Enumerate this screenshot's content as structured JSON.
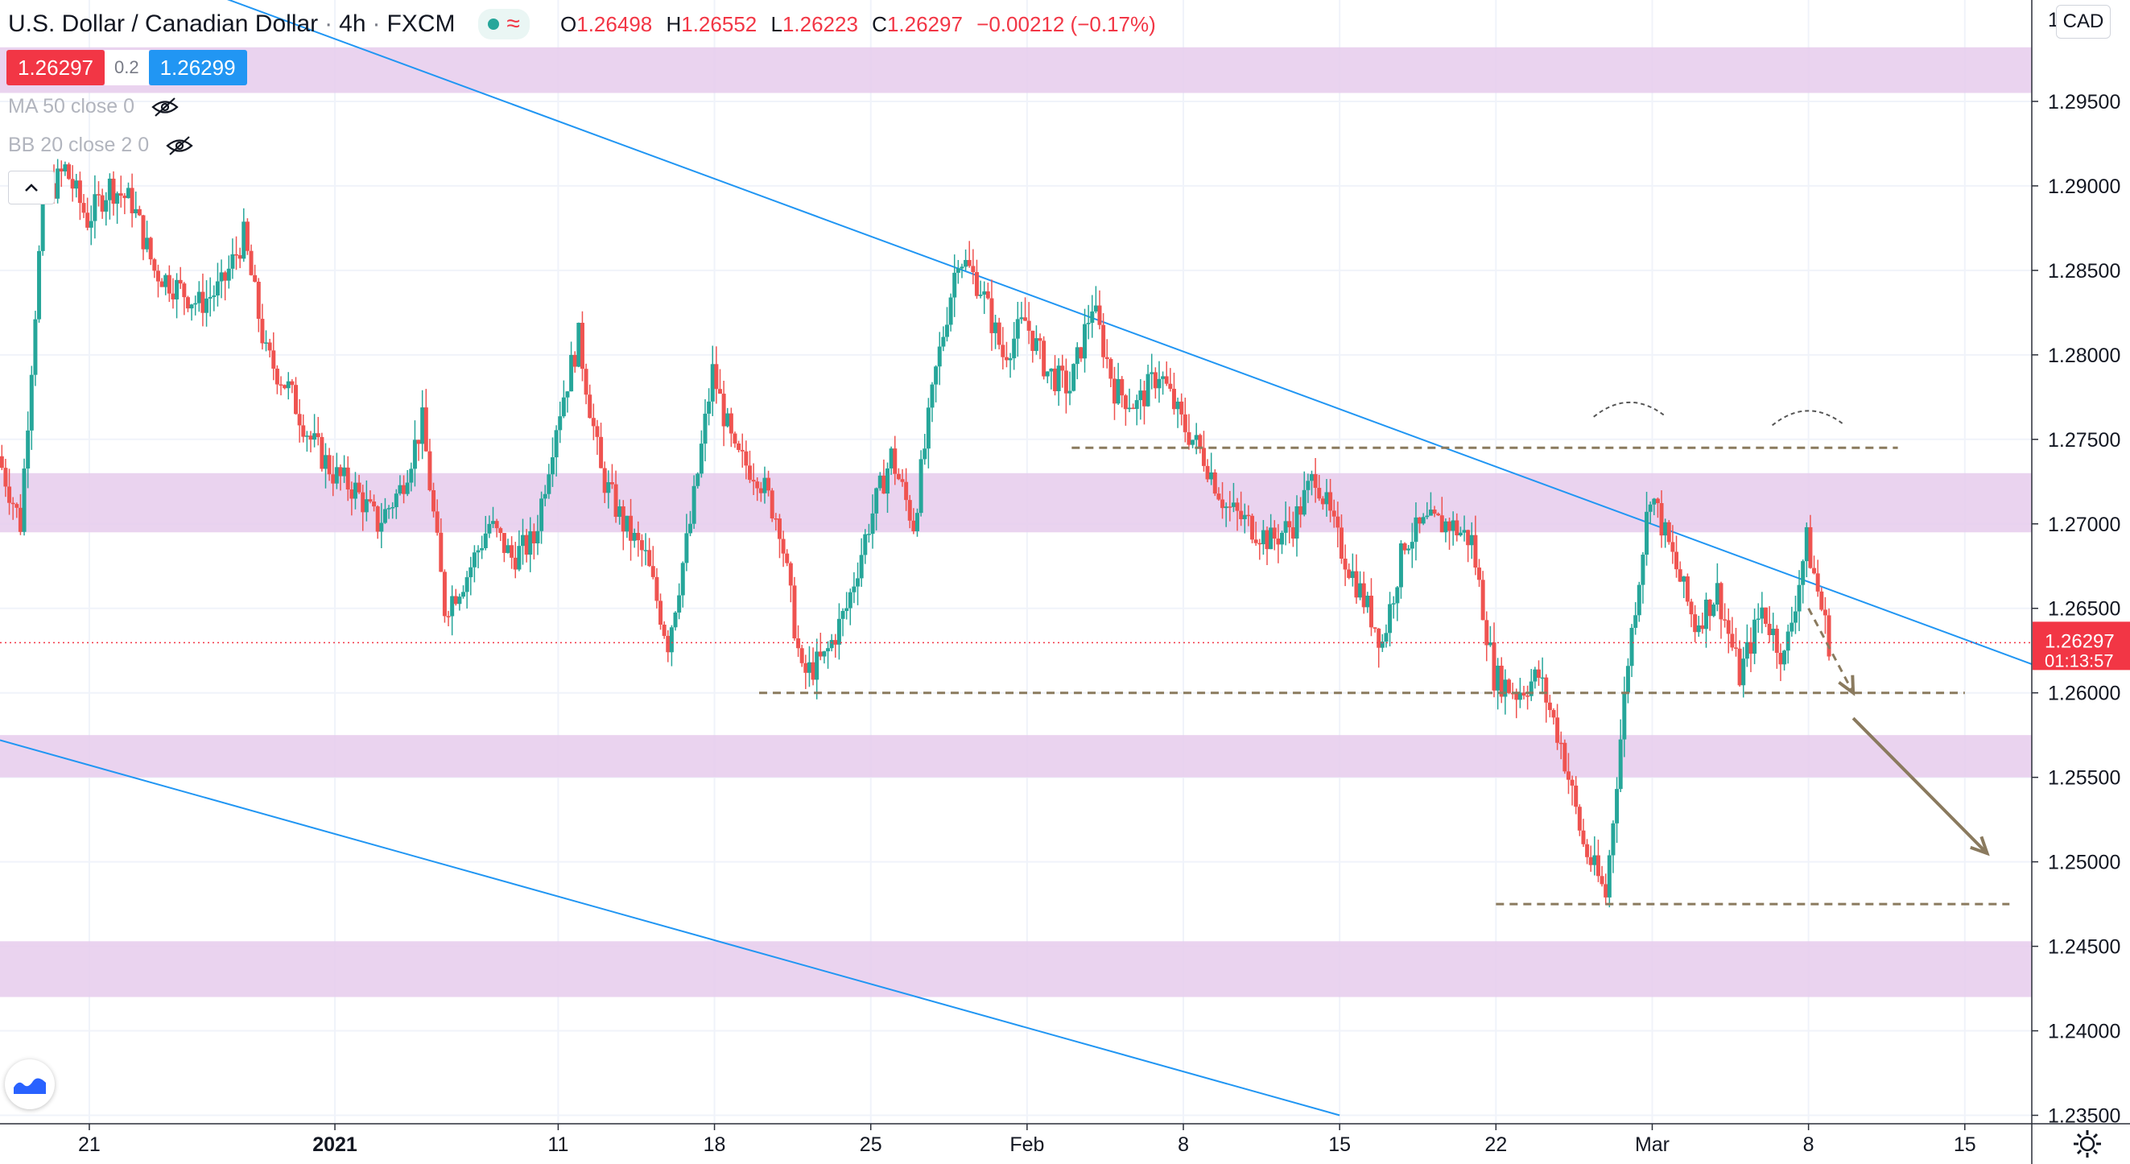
{
  "header": {
    "symbol": "U.S. Dollar / Canadian Dollar",
    "sep1": "·",
    "interval": "4h",
    "sep2": "·",
    "source": "FXCM",
    "open_label": "O",
    "open": "1.26498",
    "high_label": "H",
    "high": "1.26552",
    "low_label": "L",
    "low": "1.26223",
    "close_label": "C",
    "close": "1.26297",
    "change": "−0.00212 (−0.17%)",
    "market_icon": "market-open-dot-icon",
    "wave_icon": "wave-icon"
  },
  "trade": {
    "sell_price": "1.26297",
    "spread": "0.2",
    "buy_price": "1.26299"
  },
  "indicators": [
    {
      "label": "MA 50 close 0",
      "icon": "eye-hidden-icon"
    },
    {
      "label": "BB 20 close 2 0",
      "icon": "eye-hidden-icon"
    }
  ],
  "currency_button": "CAD",
  "colors": {
    "up": "#26a69a",
    "down": "#ef5350",
    "zone": "#e6cbec",
    "trendline": "#2196f3",
    "level_line": "#8a7a5e",
    "price_tag": "#f23645"
  },
  "chart_data": {
    "type": "candlestick",
    "x_tick_labels": [
      "21",
      "2021",
      "11",
      "18",
      "25",
      "Feb",
      "8",
      "15",
      "22",
      "Mar",
      "8",
      "15"
    ],
    "y_ticks": [
      "1.23500",
      "1.24000",
      "1.24500",
      "1.25000",
      "1.25500",
      "1.26000",
      "1.26500",
      "1.27000",
      "1.27500",
      "1.28000",
      "1.28500",
      "1.29000",
      "1.29500"
    ],
    "y_top_label_partial": "1.3",
    "ylim": [
      1.2345,
      1.301
    ],
    "current_price": {
      "value": 1.26297,
      "label": "1.26297",
      "countdown": "01:13:57"
    },
    "date_range": [
      "2020-12-17",
      "2021-03-18"
    ],
    "supply_demand_zones": [
      {
        "low": 1.2955,
        "high": 1.2982
      },
      {
        "low": 1.2695,
        "high": 1.273
      },
      {
        "low": 1.255,
        "high": 1.2575
      },
      {
        "low": 1.242,
        "high": 1.2453
      }
    ],
    "horizontal_levels": [
      {
        "value": 1.2745,
        "from": "2021-02-03",
        "to": "2021-03-12"
      },
      {
        "value": 1.26,
        "from": "2021-01-20",
        "to": "2021-03-15"
      },
      {
        "value": 1.2475,
        "from": "2021-02-22",
        "to": "2021-03-17"
      }
    ],
    "trendlines": [
      {
        "from": [
          "2020-12-17",
          1.306
        ],
        "to": [
          "2021-03-18",
          1.2617
        ]
      },
      {
        "from": [
          "2020-12-17",
          1.2572
        ],
        "to": [
          "2021-02-15",
          1.235
        ]
      }
    ],
    "projection_arrows": [
      {
        "from": [
          "2021-03-08",
          1.265
        ],
        "to": [
          "2021-03-10",
          1.26
        ],
        "style": "dashed"
      },
      {
        "from": [
          "2021-03-10",
          1.2585
        ],
        "to": [
          "2021-03-16",
          1.2505
        ],
        "style": "solid"
      }
    ],
    "double_top_arcs": [
      {
        "at": "2021-02-28",
        "value": 1.277
      },
      {
        "at": "2021-03-08",
        "value": 1.2765
      }
    ],
    "ohlc_path": [
      [
        "2020-12-17",
        1.274
      ],
      [
        "2020-12-18",
        1.27
      ],
      [
        "2020-12-19",
        1.289
      ],
      [
        "2020-12-20",
        1.291
      ],
      [
        "2020-12-21",
        1.288
      ],
      [
        "2020-12-22",
        1.29
      ],
      [
        "2020-12-23",
        1.289
      ],
      [
        "2020-12-24",
        1.285
      ],
      [
        "2020-12-25",
        1.284
      ],
      [
        "2020-12-26",
        1.283
      ],
      [
        "2020-12-27",
        1.284
      ],
      [
        "2020-12-28",
        1.287
      ],
      [
        "2020-12-29",
        1.28
      ],
      [
        "2020-12-30",
        1.278
      ],
      [
        "2020-12-31",
        1.275
      ],
      [
        "2021-01-01",
        1.273
      ],
      [
        "2021-01-02",
        1.272
      ],
      [
        "2021-01-03",
        1.27
      ],
      [
        "2021-01-04",
        1.272
      ],
      [
        "2021-01-05",
        1.276
      ],
      [
        "2021-01-06",
        1.265
      ],
      [
        "2021-01-07",
        1.267
      ],
      [
        "2021-01-08",
        1.27
      ],
      [
        "2021-01-09",
        1.268
      ],
      [
        "2021-01-10",
        1.269
      ],
      [
        "2021-01-11",
        1.276
      ],
      [
        "2021-01-12",
        1.281
      ],
      [
        "2021-01-13",
        1.273
      ],
      [
        "2021-01-14",
        1.27
      ],
      [
        "2021-01-15",
        1.268
      ],
      [
        "2021-01-16",
        1.263
      ],
      [
        "2021-01-17",
        1.27
      ],
      [
        "2021-01-18",
        1.279
      ],
      [
        "2021-01-19",
        1.274
      ],
      [
        "2021-01-20",
        1.273
      ],
      [
        "2021-01-21",
        1.27
      ],
      [
        "2021-01-22",
        1.261
      ],
      [
        "2021-01-23",
        1.262
      ],
      [
        "2021-01-24",
        1.265
      ],
      [
        "2021-01-25",
        1.27
      ],
      [
        "2021-01-26",
        1.274
      ],
      [
        "2021-01-27",
        1.27
      ],
      [
        "2021-01-28",
        1.279
      ],
      [
        "2021-01-29",
        1.286
      ],
      [
        "2021-01-30",
        1.284
      ],
      [
        "2021-01-31",
        1.28
      ],
      [
        "2021-02-01",
        1.282
      ],
      [
        "2021-02-02",
        1.279
      ],
      [
        "2021-02-03",
        1.278
      ],
      [
        "2021-02-04",
        1.283
      ],
      [
        "2021-02-05",
        1.278
      ],
      [
        "2021-02-06",
        1.277
      ],
      [
        "2021-02-07",
        1.279
      ],
      [
        "2021-02-08",
        1.276
      ],
      [
        "2021-02-09",
        1.274
      ],
      [
        "2021-02-10",
        1.271
      ],
      [
        "2021-02-11",
        1.27
      ],
      [
        "2021-02-12",
        1.269
      ],
      [
        "2021-02-13",
        1.27
      ],
      [
        "2021-02-14",
        1.273
      ],
      [
        "2021-02-15",
        1.269
      ],
      [
        "2021-02-16",
        1.266
      ],
      [
        "2021-02-17",
        1.263
      ],
      [
        "2021-02-18",
        1.269
      ],
      [
        "2021-02-19",
        1.27
      ],
      [
        "2021-02-20",
        1.27
      ],
      [
        "2021-02-21",
        1.269
      ],
      [
        "2021-02-22",
        1.261
      ],
      [
        "2021-02-23",
        1.26
      ],
      [
        "2021-02-24",
        1.261
      ],
      [
        "2021-02-25",
        1.257
      ],
      [
        "2021-02-26",
        1.251
      ],
      [
        "2021-02-27",
        1.248
      ],
      [
        "2021-02-28",
        1.262
      ],
      [
        "2021-03-01",
        1.272
      ],
      [
        "2021-03-02",
        1.268
      ],
      [
        "2021-03-03",
        1.264
      ],
      [
        "2021-03-04",
        1.266
      ],
      [
        "2021-03-05",
        1.261
      ],
      [
        "2021-03-06",
        1.265
      ],
      [
        "2021-03-07",
        1.262
      ],
      [
        "2021-03-08",
        1.269
      ],
      [
        "2021-03-09",
        1.263
      ]
    ]
  }
}
